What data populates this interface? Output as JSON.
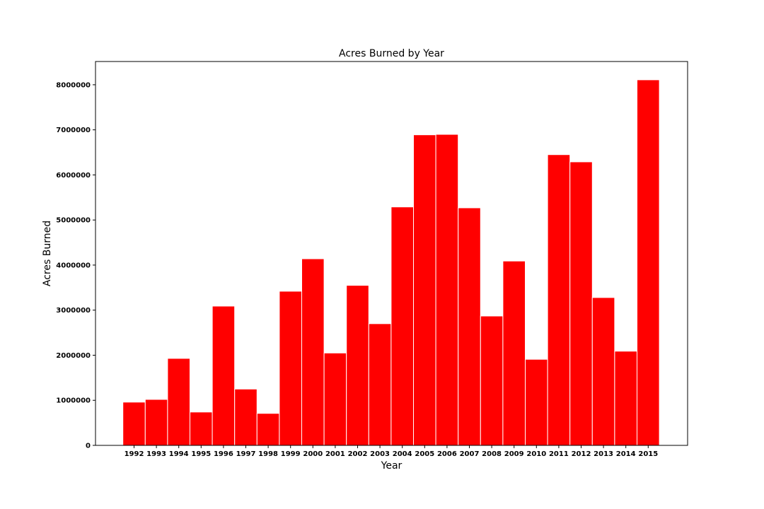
{
  "chart_data": {
    "type": "bar",
    "title": "Acres Burned by Year",
    "xlabel": "Year",
    "ylabel": "Acres Burned",
    "categories": [
      "1992",
      "1993",
      "1994",
      "1995",
      "1996",
      "1997",
      "1998",
      "1999",
      "2000",
      "2001",
      "2002",
      "2003",
      "2004",
      "2005",
      "2006",
      "2007",
      "2008",
      "2009",
      "2010",
      "2011",
      "2012",
      "2013",
      "2014",
      "2015"
    ],
    "values": [
      960000,
      1020000,
      1930000,
      740000,
      3090000,
      1250000,
      710000,
      3420000,
      4140000,
      2050000,
      3550000,
      2700000,
      5290000,
      6890000,
      6900000,
      5270000,
      2870000,
      4090000,
      1910000,
      6450000,
      6290000,
      3280000,
      2090000,
      8110000
    ],
    "yticks": [
      0,
      1000000,
      2000000,
      3000000,
      4000000,
      5000000,
      6000000,
      7000000,
      8000000
    ],
    "ylim": [
      0,
      8516000
    ],
    "grid": false,
    "legend": "none",
    "colors": {
      "bar": "#ff0000",
      "bar_edge": "#ffffff",
      "axes": "#000000"
    }
  }
}
